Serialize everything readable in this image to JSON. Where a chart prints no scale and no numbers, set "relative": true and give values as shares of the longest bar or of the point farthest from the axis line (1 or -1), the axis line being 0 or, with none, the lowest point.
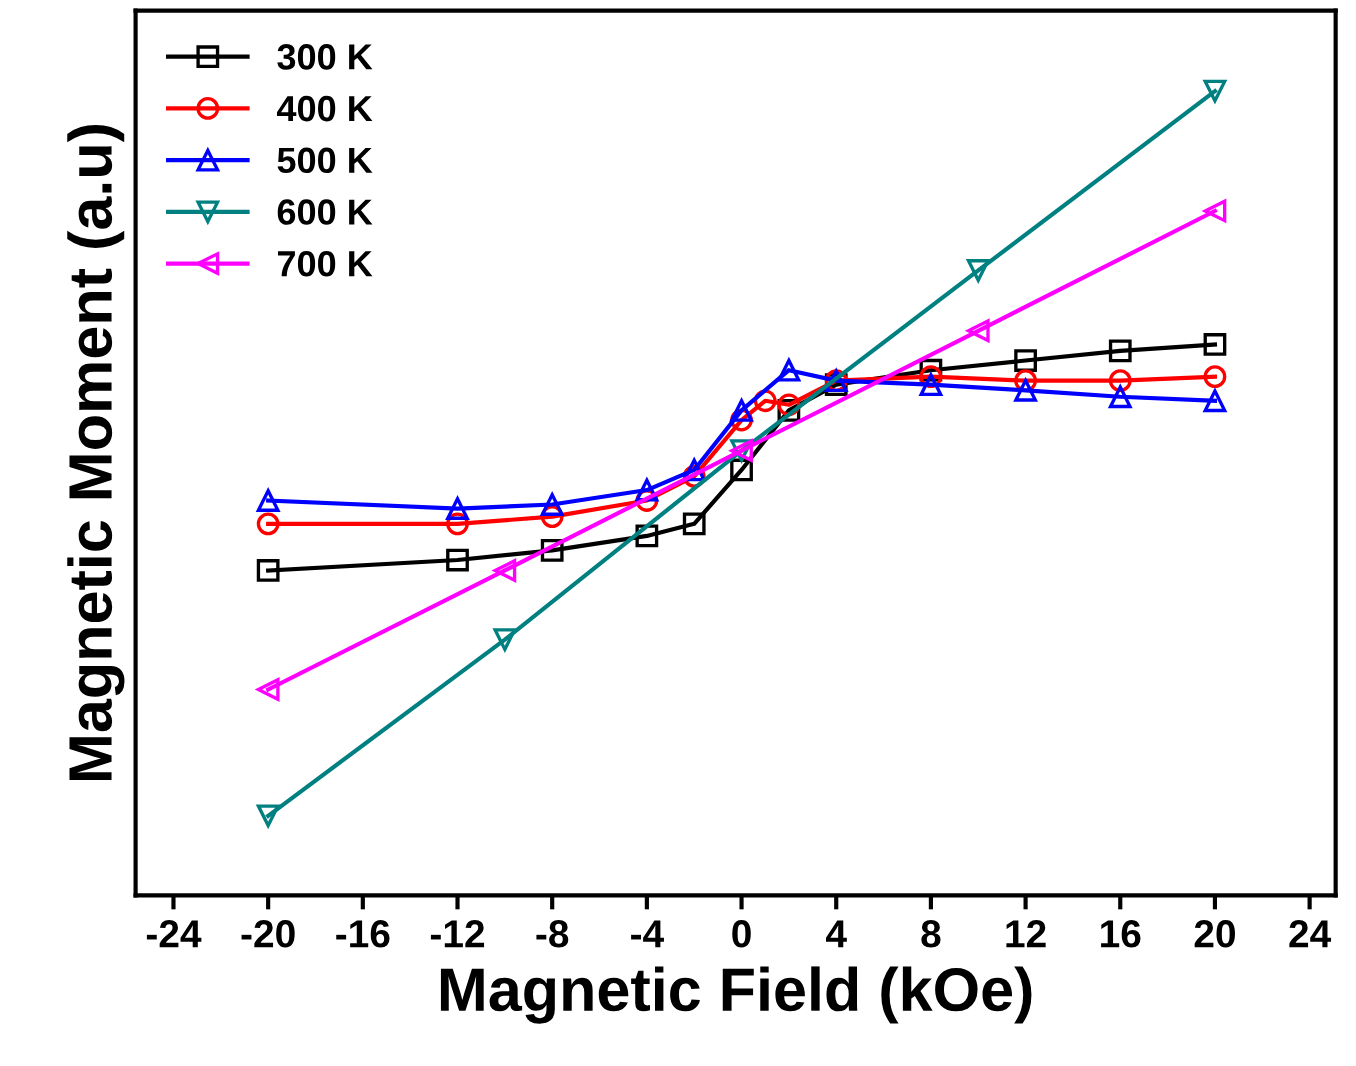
{
  "chart_data": {
    "type": "line",
    "xlabel": "Magnetic Field (kOe)",
    "ylabel": "Magnetic Moment (a.u)",
    "relative": true,
    "xlim": [
      -25.6,
      25.1
    ],
    "xticks": [
      -24,
      -20,
      -16,
      -12,
      -8,
      -4,
      0,
      4,
      8,
      12,
      16,
      20,
      24
    ],
    "tick_labels": "x",
    "legend": "top left",
    "grid": false,
    "line_style": "solid",
    "series": [
      {
        "name": "300 K",
        "color": "#000000",
        "marker": "square",
        "x": [
          -20,
          -12,
          -8,
          -4,
          -2,
          0,
          2,
          4,
          8,
          12,
          16,
          20
        ],
        "values": [
          0.404,
          0.417,
          0.429,
          0.447,
          0.462,
          0.529,
          0.603,
          0.635,
          0.653,
          0.665,
          0.677,
          0.685
        ]
      },
      {
        "name": "400 K",
        "color": "#ff0000",
        "marker": "circle",
        "x": [
          -20,
          -12,
          -8,
          -4,
          -2,
          0,
          1,
          2,
          4,
          8,
          12,
          16,
          20
        ],
        "values": [
          0.462,
          0.462,
          0.471,
          0.491,
          0.521,
          0.591,
          0.615,
          0.61,
          0.64,
          0.645,
          0.64,
          0.64,
          0.645
        ]
      },
      {
        "name": "500 K",
        "color": "#0000ff",
        "marker": "triangle",
        "x": [
          -20,
          -12,
          -8,
          -4,
          -2,
          0,
          2,
          4,
          8,
          12,
          16,
          20
        ],
        "values": [
          0.491,
          0.481,
          0.486,
          0.504,
          0.529,
          0.603,
          0.653,
          0.64,
          0.635,
          0.628,
          0.62,
          0.615
        ]
      },
      {
        "name": "600 K",
        "color": "#008080",
        "marker": "triangle-down",
        "x": [
          -20,
          -10,
          0,
          10,
          20
        ],
        "values": [
          0.099,
          0.318,
          0.553,
          0.777,
          1.0
        ]
      },
      {
        "name": "700 K",
        "color": "#ff00ff",
        "marker": "triangle-left",
        "x": [
          -20,
          -10,
          0,
          10,
          20
        ],
        "values": [
          0.256,
          0.404,
          0.553,
          0.702,
          0.851
        ]
      }
    ]
  }
}
